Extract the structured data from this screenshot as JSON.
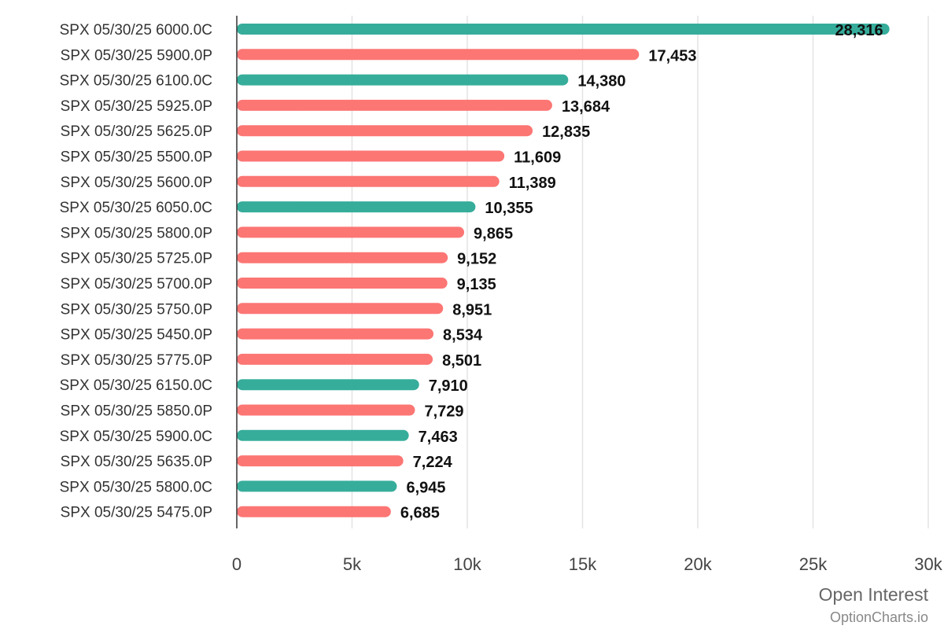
{
  "chart_data": {
    "type": "bar",
    "orientation": "horizontal",
    "categories": [
      "SPX 05/30/25 6000.0C",
      "SPX 05/30/25 5900.0P",
      "SPX 05/30/25 6100.0C",
      "SPX 05/30/25 5925.0P",
      "SPX 05/30/25 5625.0P",
      "SPX 05/30/25 5500.0P",
      "SPX 05/30/25 5600.0P",
      "SPX 05/30/25 6050.0C",
      "SPX 05/30/25 5800.0P",
      "SPX 05/30/25 5725.0P",
      "SPX 05/30/25 5700.0P",
      "SPX 05/30/25 5750.0P",
      "SPX 05/30/25 5450.0P",
      "SPX 05/30/25 5775.0P",
      "SPX 05/30/25 6150.0C",
      "SPX 05/30/25 5850.0P",
      "SPX 05/30/25 5900.0C",
      "SPX 05/30/25 5635.0P",
      "SPX 05/30/25 5800.0C",
      "SPX 05/30/25 5475.0P"
    ],
    "values": [
      28316,
      17453,
      14380,
      13684,
      12835,
      11609,
      11389,
      10355,
      9865,
      9152,
      9135,
      8951,
      8534,
      8501,
      7910,
      7729,
      7463,
      7224,
      6945,
      6685
    ],
    "value_labels": [
      "28,316",
      "17,453",
      "14,380",
      "13,684",
      "12,835",
      "11,609",
      "11,389",
      "10,355",
      "9,865",
      "9,152",
      "9,135",
      "8,951",
      "8,534",
      "8,501",
      "7,910",
      "7,729",
      "7,463",
      "7,224",
      "6,945",
      "6,685"
    ],
    "option_types": [
      "C",
      "P",
      "C",
      "P",
      "P",
      "P",
      "P",
      "C",
      "P",
      "P",
      "P",
      "P",
      "P",
      "P",
      "C",
      "P",
      "C",
      "P",
      "C",
      "P"
    ],
    "colors": {
      "C": "#36ad9b",
      "P": "#fc7674"
    },
    "xlabel": "Open Interest",
    "ylabel": "",
    "xlim": [
      0,
      30000
    ],
    "xticks": [
      0,
      5000,
      10000,
      15000,
      20000,
      25000,
      30000
    ],
    "xtick_labels": [
      "0",
      "5k",
      "10k",
      "15k",
      "20k",
      "25k",
      "30k"
    ],
    "grid": "vertical",
    "legend": "none",
    "source": "OptionCharts.io"
  }
}
